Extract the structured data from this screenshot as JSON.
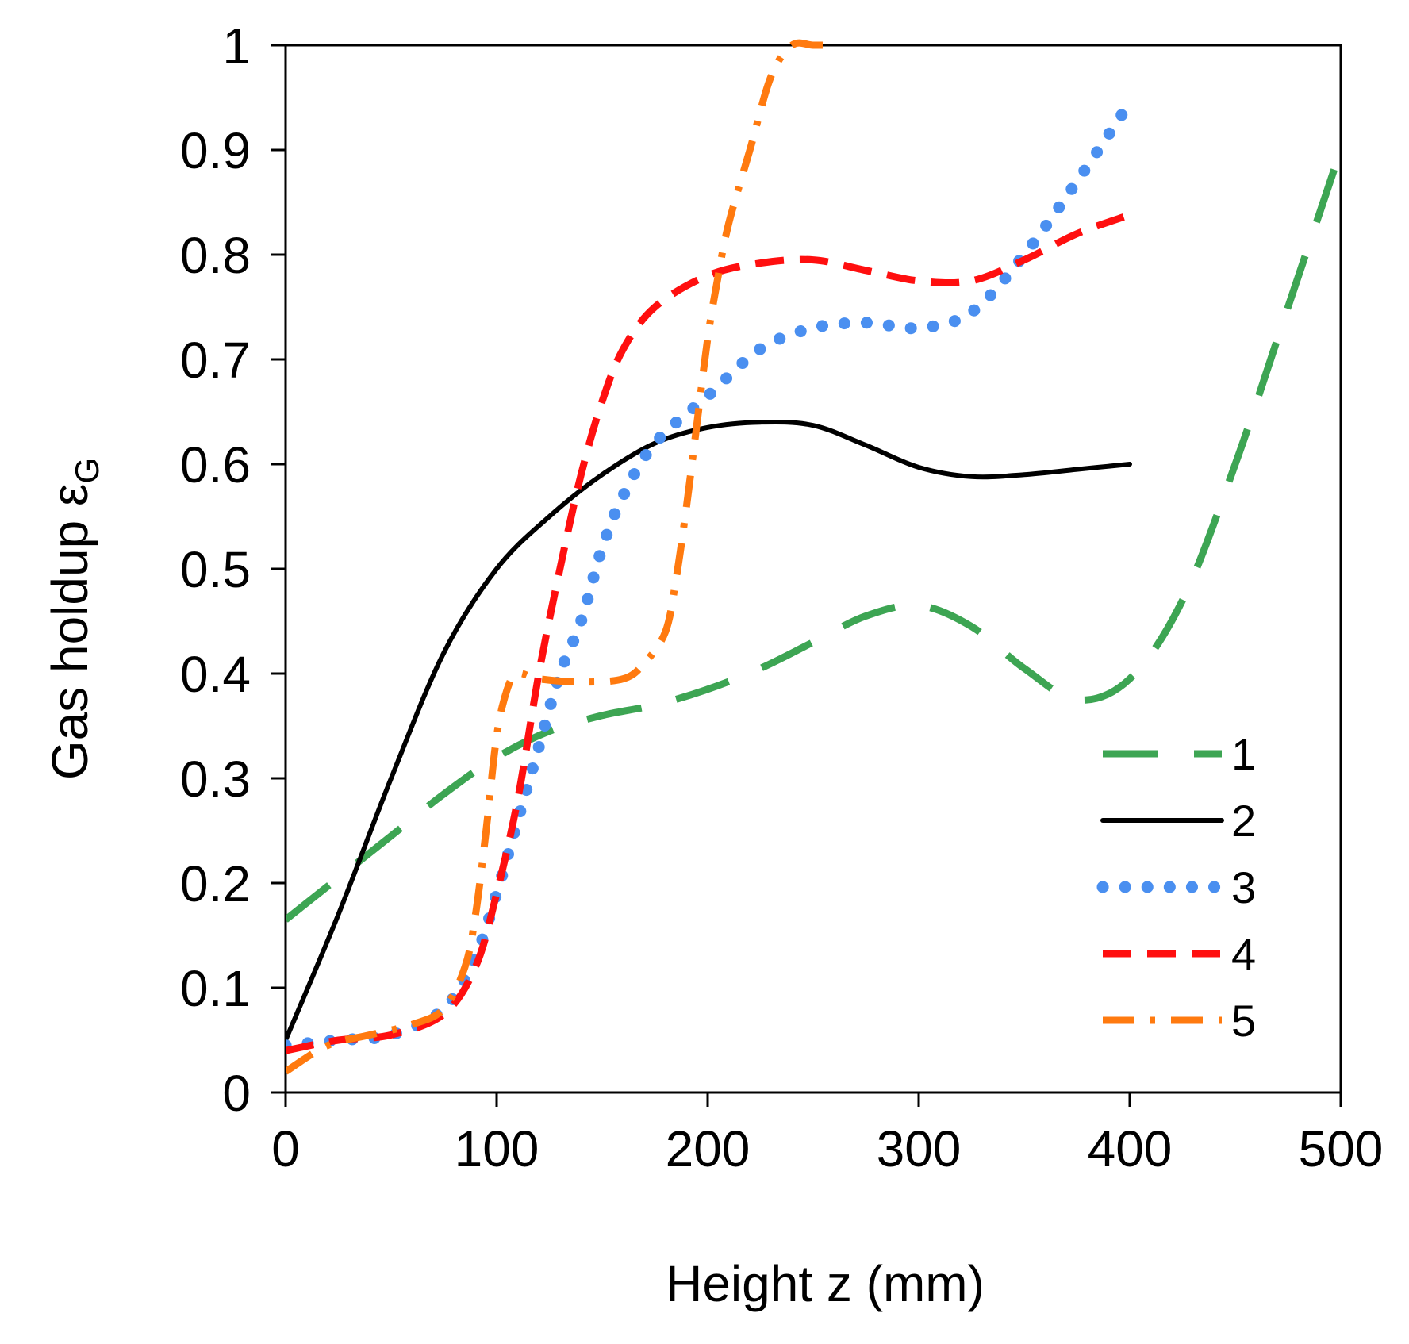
{
  "chart_data": {
    "type": "line",
    "title": "",
    "xlabel": "Height z (mm)",
    "ylabel": {
      "main": "Gas holdup ε",
      "subscript": "G"
    },
    "xlim": [
      0,
      500
    ],
    "ylim": [
      0,
      1
    ],
    "xticks": [
      "0",
      "100",
      "200",
      "300",
      "400",
      "500"
    ],
    "yticks": [
      "0",
      "0.1",
      "0.2",
      "0.3",
      "0.4",
      "0.5",
      "0.6",
      "0.7",
      "0.8",
      "0.9",
      "1"
    ],
    "grid": false,
    "legend_position": "bottom-right",
    "series": [
      {
        "name": "1",
        "style": "long-dash",
        "color": "#3DA553",
        "x": [
          0,
          25,
          50,
          75,
          100,
          125,
          150,
          175,
          200,
          225,
          250,
          275,
          300,
          325,
          350,
          375,
          400,
          425,
          450,
          475,
          500
        ],
        "y": [
          0.165,
          0.205,
          0.245,
          0.285,
          0.32,
          0.345,
          0.36,
          0.37,
          0.385,
          0.405,
          0.43,
          0.455,
          0.465,
          0.445,
          0.405,
          0.375,
          0.395,
          0.47,
          0.6,
          0.75,
          0.9
        ]
      },
      {
        "name": "2",
        "style": "solid",
        "color": "#000000",
        "x": [
          0,
          25,
          50,
          75,
          100,
          125,
          150,
          175,
          200,
          225,
          250,
          275,
          300,
          325,
          350,
          375,
          400
        ],
        "y": [
          0.05,
          0.17,
          0.3,
          0.42,
          0.5,
          0.55,
          0.59,
          0.62,
          0.635,
          0.64,
          0.637,
          0.618,
          0.597,
          0.588,
          0.59,
          0.595,
          0.6
        ]
      },
      {
        "name": "3",
        "style": "dotted",
        "color": "#4A8FF0",
        "x": [
          0,
          25,
          50,
          75,
          90,
          100,
          110,
          120,
          130,
          140,
          150,
          160,
          175,
          200,
          225,
          250,
          275,
          300,
          325,
          350,
          375,
          400
        ],
        "y": [
          0.045,
          0.05,
          0.055,
          0.08,
          0.13,
          0.19,
          0.26,
          0.33,
          0.4,
          0.45,
          0.52,
          0.57,
          0.62,
          0.665,
          0.71,
          0.73,
          0.735,
          0.73,
          0.745,
          0.8,
          0.87,
          0.945
        ]
      },
      {
        "name": "4",
        "style": "dashed",
        "color": "#FF0F0F",
        "x": [
          0,
          25,
          50,
          75,
          90,
          100,
          110,
          120,
          130,
          140,
          150,
          160,
          175,
          200,
          225,
          250,
          275,
          300,
          325,
          350,
          375,
          400
        ],
        "y": [
          0.04,
          0.05,
          0.055,
          0.075,
          0.12,
          0.19,
          0.28,
          0.4,
          0.5,
          0.59,
          0.66,
          0.71,
          0.75,
          0.78,
          0.792,
          0.795,
          0.785,
          0.775,
          0.775,
          0.795,
          0.82,
          0.838
        ]
      },
      {
        "name": "5",
        "style": "dash-dot",
        "color": "#FF7A0F",
        "x": [
          0,
          20,
          40,
          60,
          75,
          85,
          90,
          95,
          100,
          105,
          110,
          120,
          140,
          160,
          170,
          180,
          185,
          190,
          195,
          200,
          205,
          210,
          220,
          230,
          240,
          250,
          260
        ],
        "y": [
          0.02,
          0.045,
          0.055,
          0.065,
          0.08,
          0.12,
          0.17,
          0.25,
          0.34,
          0.385,
          0.4,
          0.395,
          0.392,
          0.395,
          0.41,
          0.44,
          0.49,
          0.56,
          0.64,
          0.72,
          0.78,
          0.83,
          0.9,
          0.97,
          1.0,
          1.0,
          1.0
        ]
      }
    ]
  }
}
